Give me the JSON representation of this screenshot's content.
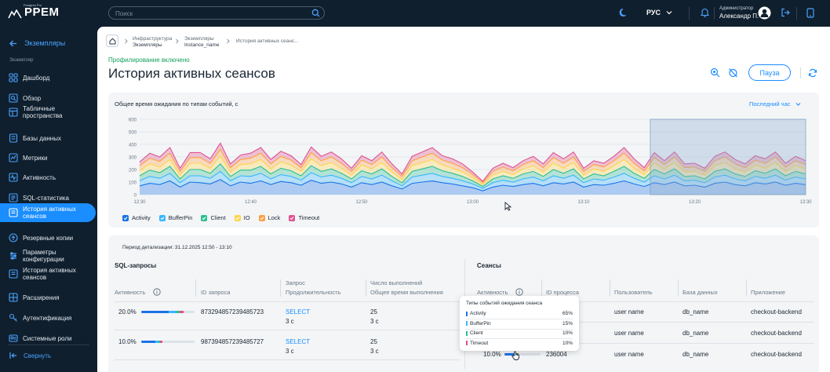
{
  "app": {
    "logo_small": "Postgres Pro",
    "logo_big": "PPEM"
  },
  "topbar": {
    "search_placeholder": "Поиск",
    "language": "РУС",
    "user_role": "Администратор",
    "user_name": "Александр П."
  },
  "sidebar": {
    "back_label": "Экземпляры",
    "section_label": "Экземпляр",
    "items": [
      {
        "label": "Дашборд",
        "icon": "dashboard-icon"
      },
      {
        "label": "Обзор",
        "icon": "overview-icon"
      },
      {
        "label": "Табличные пространства",
        "icon": "tablespace-icon"
      },
      {
        "label": "Базы данных",
        "icon": "database-icon"
      },
      {
        "label": "Метрики",
        "icon": "metrics-icon"
      },
      {
        "label": "Активность",
        "icon": "activity-icon"
      },
      {
        "label": "SQL-статистика",
        "icon": "sql-icon"
      },
      {
        "label": "История активных сеансов",
        "icon": "history-icon"
      },
      {
        "label": "Резервные копии",
        "icon": "backup-icon"
      },
      {
        "label": "Параметры конфигурации",
        "icon": "config-icon"
      },
      {
        "label": "История активных сеансов",
        "icon": "history-icon"
      },
      {
        "label": "Расширения",
        "icon": "extensions-icon"
      },
      {
        "label": "Аутентификация",
        "icon": "key-icon"
      },
      {
        "label": "Системные роли",
        "icon": "roles-icon"
      }
    ],
    "active_index": 7,
    "collapse_label": "Свернуть"
  },
  "breadcrumb": [
    {
      "top": "Инфраструктура",
      "bottom": "Экземпляры"
    },
    {
      "top": "Экземпляры",
      "bottom": "Instance_name"
    },
    {
      "top": "История активных сеанс...",
      "bottom": ""
    }
  ],
  "page": {
    "profiling_status": "Профилирование включено",
    "title": "История активных сеансов",
    "pause_label": "Пауза"
  },
  "chart_card": {
    "title": "Общее время ожидания по типам событий, с",
    "period": "Последний час"
  },
  "chart_data": {
    "type": "area",
    "title": "Общее время ожидания по типам событий, с",
    "x_ticks": [
      "12:30",
      "12:40",
      "12:50",
      "13:00",
      "13:10",
      "13:20",
      "13:30"
    ],
    "y_ticks": [
      0,
      100,
      200,
      300,
      400,
      500,
      600
    ],
    "ylim": [
      0,
      600
    ],
    "stacked": true,
    "legend_position": "bottom",
    "selection_range": [
      "13:16",
      "13:30"
    ],
    "series": [
      {
        "name": "Activity",
        "color": "#1a73e8",
        "values": [
          70,
          90,
          80,
          110,
          60,
          100,
          95,
          85,
          120,
          70,
          100,
          90,
          110,
          80,
          105,
          95,
          75,
          115,
          90,
          100,
          85,
          60,
          95,
          80,
          100,
          70,
          45,
          90,
          100,
          110,
          95,
          85,
          70,
          55,
          30,
          60,
          75,
          65,
          80,
          90,
          70,
          95,
          85,
          100,
          60,
          80,
          75,
          90,
          110,
          85,
          65,
          95,
          80,
          100,
          70,
          75,
          60,
          90,
          100,
          80,
          70,
          95,
          85,
          100,
          75,
          90,
          80
        ]
      },
      {
        "name": "BufferPin",
        "color": "#38b6ff",
        "values": [
          40,
          55,
          50,
          60,
          35,
          50,
          55,
          45,
          65,
          40,
          50,
          55,
          60,
          45,
          55,
          50,
          40,
          60,
          50,
          55,
          45,
          35,
          50,
          45,
          55,
          40,
          25,
          50,
          55,
          60,
          50,
          45,
          40,
          30,
          20,
          35,
          40,
          35,
          45,
          50,
          40,
          55,
          45,
          55,
          35,
          45,
          40,
          50,
          60,
          45,
          35,
          55,
          45,
          55,
          40,
          40,
          35,
          50,
          55,
          45,
          40,
          50,
          45,
          55,
          40,
          50,
          45
        ]
      },
      {
        "name": "Client",
        "color": "#2bbf8f",
        "values": [
          40,
          50,
          45,
          55,
          30,
          50,
          50,
          40,
          60,
          35,
          45,
          50,
          55,
          40,
          50,
          45,
          35,
          55,
          45,
          50,
          40,
          30,
          45,
          40,
          50,
          35,
          25,
          45,
          50,
          55,
          45,
          40,
          35,
          25,
          15,
          30,
          35,
          30,
          40,
          45,
          35,
          50,
          40,
          50,
          30,
          40,
          35,
          45,
          55,
          40,
          30,
          50,
          40,
          50,
          35,
          35,
          30,
          45,
          50,
          40,
          35,
          45,
          40,
          50,
          35,
          45,
          40
        ]
      },
      {
        "name": "IO",
        "color": "#ffd54a",
        "values": [
          40,
          50,
          45,
          55,
          30,
          50,
          50,
          40,
          60,
          35,
          45,
          50,
          55,
          40,
          50,
          45,
          35,
          55,
          45,
          50,
          40,
          30,
          45,
          40,
          50,
          35,
          25,
          45,
          50,
          55,
          45,
          40,
          35,
          25,
          15,
          30,
          35,
          30,
          40,
          45,
          35,
          50,
          40,
          50,
          30,
          40,
          35,
          45,
          55,
          40,
          30,
          50,
          40,
          50,
          35,
          35,
          30,
          45,
          50,
          40,
          35,
          45,
          40,
          50,
          35,
          45,
          40
        ]
      },
      {
        "name": "Lock",
        "color": "#ff9f43",
        "values": [
          40,
          45,
          45,
          50,
          30,
          45,
          45,
          40,
          55,
          35,
          40,
          45,
          50,
          40,
          45,
          40,
          30,
          50,
          40,
          45,
          40,
          30,
          40,
          35,
          45,
          35,
          25,
          40,
          45,
          50,
          40,
          40,
          35,
          25,
          15,
          30,
          35,
          30,
          35,
          40,
          35,
          45,
          40,
          45,
          30,
          35,
          35,
          40,
          50,
          40,
          30,
          45,
          35,
          45,
          35,
          35,
          30,
          40,
          45,
          40,
          35,
          40,
          40,
          45,
          35,
          40,
          35
        ]
      },
      {
        "name": "Timeout",
        "color": "#e0528e",
        "values": [
          30,
          40,
          35,
          45,
          25,
          40,
          40,
          35,
          50,
          30,
          35,
          40,
          45,
          35,
          40,
          35,
          25,
          45,
          35,
          40,
          35,
          25,
          35,
          30,
          40,
          30,
          20,
          35,
          40,
          45,
          35,
          35,
          30,
          20,
          12,
          25,
          30,
          25,
          30,
          35,
          30,
          40,
          35,
          40,
          25,
          30,
          30,
          35,
          45,
          35,
          25,
          40,
          30,
          40,
          30,
          30,
          25,
          35,
          40,
          35,
          30,
          35,
          35,
          40,
          30,
          35,
          30
        ]
      }
    ]
  },
  "detail": {
    "period_label": "Период детализации: 31.12.2025 12:50 - 13:10"
  },
  "sql_table": {
    "title": "SQL-запросы",
    "headers": {
      "activity": "Активность",
      "query_id": "ID запроса",
      "query_line1": "Запрос",
      "query_line2": "Продолжительность",
      "exec_line1": "Число выполнений",
      "exec_line2": "Общее время выполнения"
    },
    "rows": [
      {
        "percent": "20.0%",
        "id": "873294857239485723",
        "query": "SELECT",
        "duration": "3 с",
        "count": "25",
        "total": "3 с",
        "activity": 0.2
      },
      {
        "percent": "10.0%",
        "id": "987394857239485727",
        "query": "SELECT",
        "duration": "3 с",
        "count": "25",
        "total": "3 с",
        "activity": 0.1
      }
    ]
  },
  "sessions_table": {
    "title": "Сеансы",
    "headers": {
      "activity": "Активность",
      "pid": "ID процесса",
      "user": "Пользователь",
      "db": "База данных",
      "app": "Приложение"
    },
    "rows": [
      {
        "percent": "",
        "pid": "",
        "user": "user name",
        "db": "db_name",
        "app": "checkout-backend"
      },
      {
        "percent": "",
        "pid": "",
        "user": "user name",
        "db": "db_name",
        "app": "checkout-backend"
      },
      {
        "percent": "10.0%",
        "pid": "236004",
        "user": "user name",
        "db": "db_name",
        "app": "checkout-backend",
        "activity": 0.1
      }
    ]
  },
  "tooltip": {
    "title": "Типы событий ожидания сеанса",
    "rows": [
      {
        "label": "Activity",
        "value": "65%",
        "color": "#1a73e8"
      },
      {
        "label": "BufferPin",
        "value": "15%",
        "color": "#38b6ff"
      },
      {
        "label": "Client",
        "value": "10%",
        "color": "#2bbf8f"
      },
      {
        "label": "Timeout",
        "value": "10%",
        "color": "#e0528e"
      }
    ]
  }
}
